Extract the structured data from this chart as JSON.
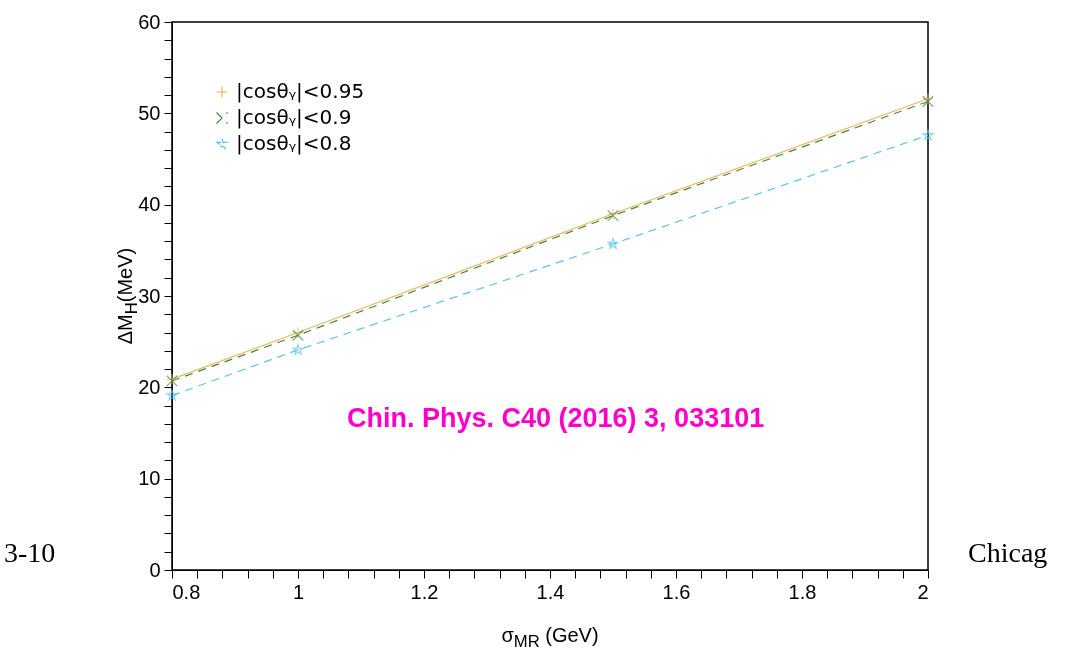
{
  "chart_data": {
    "type": "line",
    "xlabel": "σ$_{MR}$ (GeV)",
    "ylabel": "ΔM$_{H}$(MeV)",
    "x": [
      0.8,
      1,
      1.5,
      2
    ],
    "series": [
      {
        "name": "|cosθᵧ|<0.95",
        "color": "#f2b45a",
        "marker": "plus",
        "line_style": "solid",
        "values": [
          20.9,
          26.0,
          39.0,
          51.6
        ]
      },
      {
        "name": "|cosθᵧ|<0.9",
        "color": "#3d8a3d",
        "marker": "cross",
        "line_style": "dashed",
        "values": [
          20.7,
          25.7,
          38.8,
          51.3
        ]
      },
      {
        "name": "|cosθᵧ|<0.8",
        "color": "#55c4ee",
        "marker": "star",
        "line_style": "dashed",
        "values": [
          19.1,
          24.1,
          35.7,
          47.6
        ]
      }
    ],
    "xlim": [
      0.8,
      2
    ],
    "ylim": [
      0,
      60
    ],
    "xticks": [
      0.8,
      {
        "value": 0.84,
        "label": null
      },
      {
        "value": 0.88,
        "label": null
      },
      {
        "value": 0.92,
        "label": null
      },
      {
        "value": 0.96,
        "label": null
      },
      1,
      {
        "value": 1.04,
        "label": null
      },
      {
        "value": 1.08,
        "label": null
      },
      {
        "value": 1.12,
        "label": null
      },
      {
        "value": 1.16,
        "label": null
      },
      1.2,
      {
        "value": 1.24,
        "label": null
      },
      {
        "value": 1.28,
        "label": null
      },
      {
        "value": 1.32,
        "label": null
      },
      {
        "value": 1.36,
        "label": null
      },
      1.4,
      {
        "value": 1.44,
        "label": null
      },
      {
        "value": 1.48,
        "label": null
      },
      {
        "value": 1.52,
        "label": null
      },
      {
        "value": 1.56,
        "label": null
      },
      1.6,
      {
        "value": 1.64,
        "label": null
      },
      {
        "value": 1.68,
        "label": null
      },
      {
        "value": 1.72,
        "label": null
      },
      {
        "value": 1.76,
        "label": null
      },
      1.8,
      {
        "value": 1.84,
        "label": null
      },
      {
        "value": 1.88,
        "label": null
      },
      {
        "value": 1.92,
        "label": null
      },
      {
        "value": 1.96,
        "label": null
      },
      2
    ],
    "yticks": [
      0,
      {
        "value": 2,
        "label": null
      },
      {
        "value": 4,
        "label": null
      },
      {
        "value": 6,
        "label": null
      },
      {
        "value": 8,
        "label": null
      },
      10,
      {
        "value": 12,
        "label": null
      },
      {
        "value": 14,
        "label": null
      },
      {
        "value": 16,
        "label": null
      },
      {
        "value": 18,
        "label": null
      },
      20,
      {
        "value": 22,
        "label": null
      },
      {
        "value": 24,
        "label": null
      },
      {
        "value": 26,
        "label": null
      },
      {
        "value": 28,
        "label": null
      },
      30,
      {
        "value": 32,
        "label": null
      },
      {
        "value": 34,
        "label": null
      },
      {
        "value": 36,
        "label": null
      },
      {
        "value": 38,
        "label": null
      },
      40,
      {
        "value": 42,
        "label": null
      },
      {
        "value": 44,
        "label": null
      },
      {
        "value": 46,
        "label": null
      },
      {
        "value": 48,
        "label": null
      },
      50,
      {
        "value": 52,
        "label": null
      },
      {
        "value": 54,
        "label": null
      },
      {
        "value": 56,
        "label": null
      },
      {
        "value": 58,
        "label": null
      },
      60
    ],
    "legend": "top left",
    "annotations": [
      "Chin. Phys. C40 (2016) 3, 033101",
      "3-10",
      "Chicag"
    ]
  }
}
